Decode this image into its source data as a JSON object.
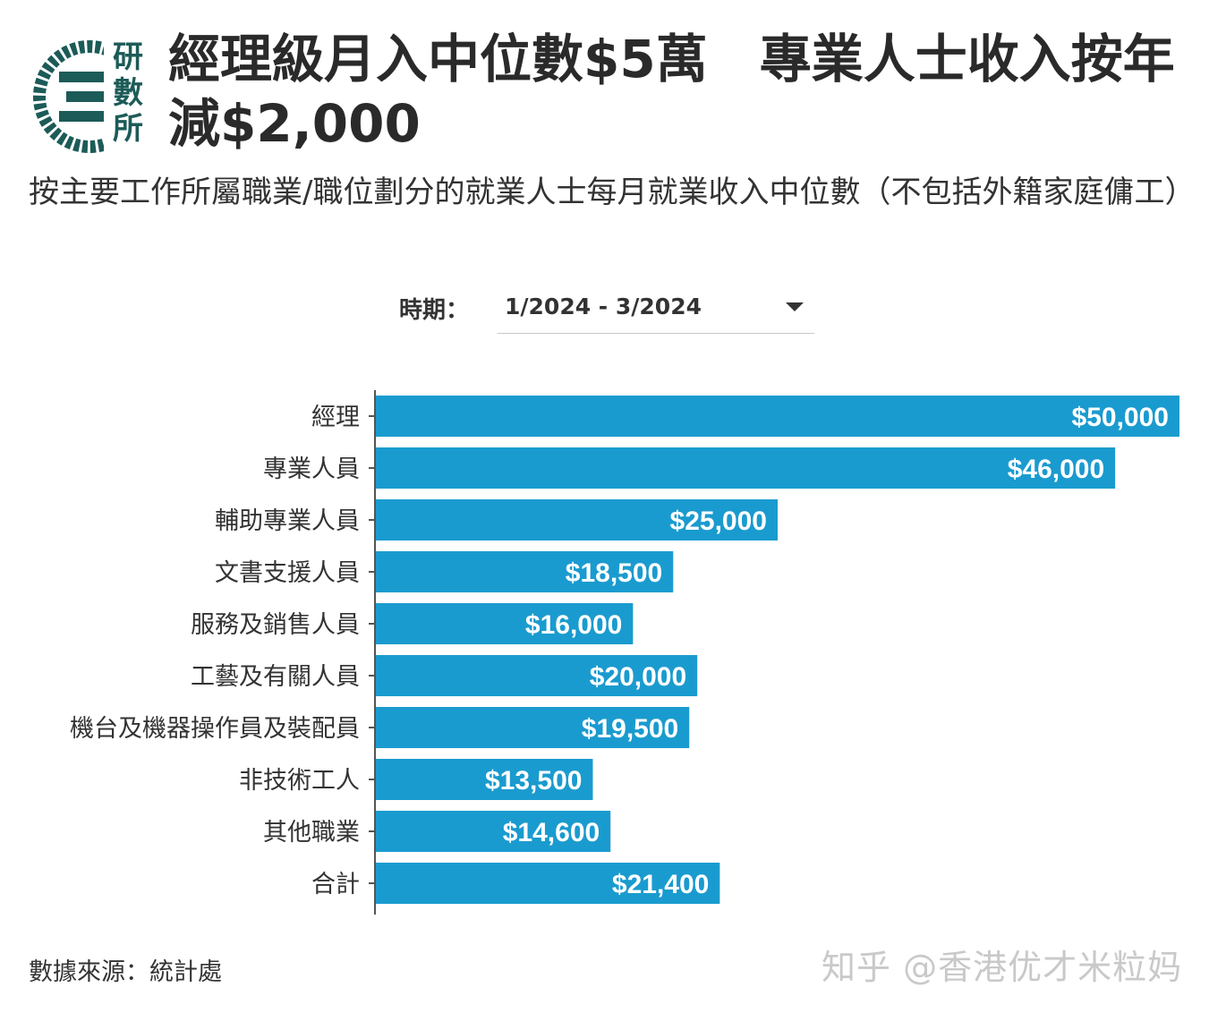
{
  "logo": {
    "text": [
      "研",
      "數",
      "所"
    ]
  },
  "title": "經理級月入中位數$5萬　專業人士收入按年減$2,000",
  "subtitle": "按主要工作所屬職業/職位劃分的就業人士每月就業收入中位數（不包括外籍家庭傭工）",
  "filter": {
    "label": "時期：",
    "value": "1/2024 - 3/2024",
    "icon": "chevron-down-icon"
  },
  "source": "數據來源：統計處",
  "watermark": "知乎 @香港优才米粒妈",
  "colors": {
    "bar": "#1a9bcf",
    "bar_label": "#ffffff",
    "axis": "#555555"
  },
  "chart_data": {
    "type": "bar",
    "orientation": "horizontal",
    "categories": [
      "經理",
      "專業人員",
      "輔助專業人員",
      "文書支援人員",
      "服務及銷售人員",
      "工藝及有關人員",
      "機台及機器操作員及裝配員",
      "非技術工人",
      "其他職業",
      "合計"
    ],
    "values": [
      50000,
      46000,
      25000,
      18500,
      16000,
      20000,
      19500,
      13500,
      14600,
      21400
    ],
    "data_labels": [
      "$50,000",
      "$46,000",
      "$25,000",
      "$18,500",
      "$16,000",
      "$20,000",
      "$19,500",
      "$13,500",
      "$14,600",
      "$21,400"
    ],
    "xlim": [
      0,
      50000
    ],
    "grid": false,
    "legend": "none"
  }
}
